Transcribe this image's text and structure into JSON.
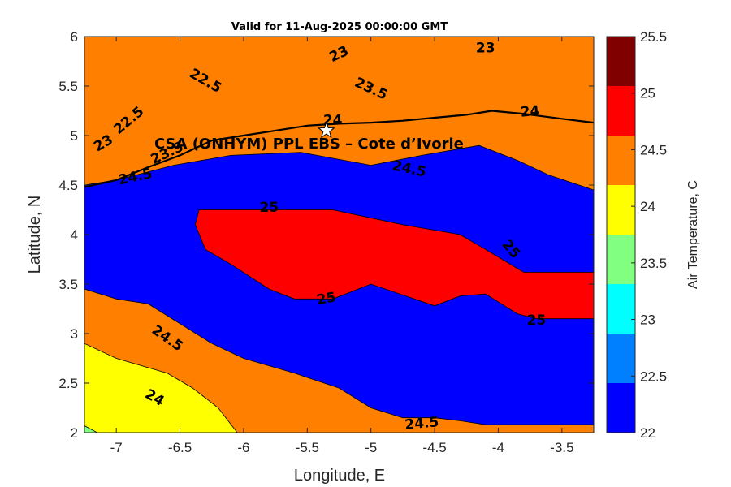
{
  "chart_data": {
    "type": "heatmap",
    "subtype": "filled-contour map",
    "title": "Valid for 11-Aug-2025 00:00:00 GMT",
    "xlabel": "Longitude, E",
    "ylabel": "Latitude, N",
    "xlim": [
      -7.25,
      -3.25
    ],
    "ylim": [
      2,
      6
    ],
    "xticks": [
      -7,
      -6.5,
      -6,
      -5.5,
      -5,
      -4.5,
      -4,
      -3.5
    ],
    "yticks": [
      2,
      2.5,
      3,
      3.5,
      4,
      4.5,
      5,
      5.5,
      6
    ],
    "xtick_labels": [
      "-7",
      "-6.5",
      "-6",
      "-5.5",
      "-5",
      "-4.5",
      "-4",
      "-3.5"
    ],
    "ytick_labels": [
      "2",
      "2.5",
      "3",
      "3.5",
      "4",
      "4.5",
      "5",
      "5.5",
      "6"
    ],
    "colorbar": {
      "label": "Air Temperature, C",
      "ticks": [
        22,
        22.5,
        23,
        23.5,
        24,
        24.5,
        25,
        25.5
      ],
      "tick_labels": [
        "22",
        "22.5",
        "23",
        "23.5",
        "24",
        "24.5",
        "25",
        "25.5"
      ],
      "levels": [
        22,
        22.5,
        23,
        23.5,
        24,
        24.5,
        25,
        25.5
      ],
      "colors": [
        "#0000ff",
        "#0080ff",
        "#00ffff",
        "#80ff80",
        "#ffff00",
        "#ff8000",
        "#ff0000",
        "#800000"
      ]
    },
    "contour_levels": [
      22.5,
      23,
      23.5,
      24,
      24.5,
      25
    ],
    "contours": [
      {
        "level": 22.5,
        "polygon": [
          [
            -7.25,
            6
          ],
          [
            -6.9,
            6
          ],
          [
            -6.75,
            5.85
          ],
          [
            -6.6,
            5.65
          ],
          [
            -6.5,
            5.3
          ],
          [
            -6.75,
            5.05
          ],
          [
            -7,
            4.9
          ],
          [
            -7.25,
            4.85
          ]
        ]
      },
      {
        "level": 22.5,
        "polygon": [
          [
            -6.2,
            6
          ],
          [
            -5.3,
            6
          ],
          [
            -5.5,
            5.72
          ],
          [
            -5.75,
            5.55
          ],
          [
            -5.9,
            5.52
          ],
          [
            -6.05,
            5.6
          ],
          [
            -6.15,
            5.8
          ]
        ]
      },
      {
        "level": 23,
        "polygon": [
          [
            -7.25,
            6
          ],
          [
            -6.4,
            6
          ],
          [
            -6.35,
            5.65
          ],
          [
            -5.85,
            5.42
          ],
          [
            -5.3,
            5.7
          ],
          [
            -5.15,
            5.75
          ],
          [
            -4.5,
            5.9
          ],
          [
            -4.3,
            6
          ],
          [
            -3.25,
            6
          ],
          [
            -3.25,
            5.5
          ],
          [
            -3.6,
            5.55
          ],
          [
            -4,
            5.6
          ],
          [
            -4.5,
            5.4
          ],
          [
            -4.75,
            5.25
          ],
          [
            -5.15,
            5.3
          ],
          [
            -5.25,
            5.42
          ],
          [
            -5.5,
            5.38
          ],
          [
            -5.75,
            5.2
          ],
          [
            -6,
            5.08
          ],
          [
            -6.25,
            5.05
          ],
          [
            -6.5,
            4.95
          ],
          [
            -6.75,
            4.82
          ],
          [
            -7.05,
            4.7
          ],
          [
            -7.25,
            4.62
          ]
        ]
      },
      {
        "level": 23.5,
        "polygon": [
          [
            -7.25,
            6
          ],
          [
            -3.25,
            6
          ],
          [
            -3.25,
            5.25
          ],
          [
            -3.7,
            5.25
          ],
          [
            -3.9,
            5.35
          ],
          [
            -4.05,
            5.48
          ],
          [
            -4.2,
            5.35
          ],
          [
            -4.45,
            5.3
          ],
          [
            -4.7,
            5.05
          ],
          [
            -5,
            5.1
          ],
          [
            -5.2,
            5.22
          ],
          [
            -5.35,
            5.08
          ],
          [
            -5.55,
            5.05
          ],
          [
            -5.8,
            5
          ],
          [
            -6.1,
            4.88
          ],
          [
            -6.5,
            4.85
          ],
          [
            -6.9,
            4.7
          ],
          [
            -7.25,
            4.55
          ]
        ]
      },
      {
        "level": 24,
        "polygon": [
          [
            -7.25,
            6
          ],
          [
            -3.25,
            6
          ],
          [
            -3.25,
            5.25
          ],
          [
            -3.6,
            5.2
          ],
          [
            -4,
            5.25
          ],
          [
            -4.5,
            5.18
          ],
          [
            -5,
            5.15
          ],
          [
            -5.5,
            5.1
          ],
          [
            -5.75,
            5.1
          ],
          [
            -6.25,
            4.95
          ],
          [
            -6.55,
            4.82
          ],
          [
            -7,
            4.62
          ],
          [
            -7.25,
            4.52
          ]
        ]
      },
      {
        "level": 24.5,
        "polygon": [
          [
            -7.25,
            6
          ],
          [
            -3.25,
            6
          ],
          [
            -3.25,
            4.45
          ],
          [
            -3.6,
            4.6
          ],
          [
            -3.85,
            4.75
          ],
          [
            -4.15,
            4.9
          ],
          [
            -4.6,
            4.8
          ],
          [
            -5,
            4.7
          ],
          [
            -5.55,
            4.83
          ],
          [
            -6.1,
            4.8
          ],
          [
            -6.55,
            4.7
          ],
          [
            -7,
            4.55
          ],
          [
            -7.25,
            4.5
          ]
        ]
      },
      {
        "level": 25,
        "polygon": [
          [
            -6.35,
            4.25
          ],
          [
            -5.9,
            4.25
          ],
          [
            -5.3,
            4.25
          ],
          [
            -4.75,
            4.1
          ],
          [
            -4.3,
            4
          ],
          [
            -4.1,
            3.85
          ],
          [
            -3.8,
            3.62
          ],
          [
            -3.25,
            3.62
          ],
          [
            -3.25,
            3.15
          ],
          [
            -3.7,
            3.15
          ],
          [
            -3.85,
            3.2
          ],
          [
            -4.1,
            3.4
          ],
          [
            -4.3,
            3.38
          ],
          [
            -4.5,
            3.28
          ],
          [
            -5,
            3.5
          ],
          [
            -5.3,
            3.35
          ],
          [
            -5.6,
            3.35
          ],
          [
            -5.8,
            3.45
          ],
          [
            -6.1,
            3.7
          ],
          [
            -6.3,
            3.85
          ],
          [
            -6.38,
            4.1
          ]
        ]
      },
      {
        "level": 24.5,
        "polygon": [
          [
            -7.25,
            3.45
          ],
          [
            -7,
            3.35
          ],
          [
            -6.75,
            3.3
          ],
          [
            -6.5,
            3.1
          ],
          [
            -6.25,
            2.9
          ],
          [
            -6,
            2.75
          ],
          [
            -5.6,
            2.6
          ],
          [
            -5.25,
            2.45
          ],
          [
            -5,
            2.25
          ],
          [
            -4.75,
            2.15
          ],
          [
            -4.5,
            2.15
          ],
          [
            -4.3,
            2.12
          ],
          [
            -4.1,
            2.08
          ],
          [
            -3.25,
            2.08
          ],
          [
            -3.25,
            2
          ],
          [
            -7.25,
            2
          ]
        ]
      },
      {
        "level": 24,
        "polygon": [
          [
            -7.25,
            2.9
          ],
          [
            -7,
            2.75
          ],
          [
            -6.6,
            2.6
          ],
          [
            -6.4,
            2.45
          ],
          [
            -6.2,
            2.25
          ],
          [
            -6.05,
            2
          ],
          [
            -7.25,
            2
          ]
        ]
      },
      {
        "level": 23.5,
        "polygon": [
          [
            -7.25,
            2.07
          ],
          [
            -7.15,
            2
          ],
          [
            -7.25,
            2
          ]
        ]
      }
    ],
    "contour_labels": [
      {
        "text": "22.5",
        "lon": -6.3,
        "lat": 5.55,
        "angle": 30
      },
      {
        "text": "22.5",
        "lon": -6.9,
        "lat": 5.15,
        "angle": -40
      },
      {
        "text": "23",
        "lon": -5.25,
        "lat": 5.82,
        "angle": -25
      },
      {
        "text": "23",
        "lon": -4.1,
        "lat": 5.88,
        "angle": 0
      },
      {
        "text": "23",
        "lon": -7.1,
        "lat": 4.92,
        "angle": -30
      },
      {
        "text": "23.5",
        "lon": -5,
        "lat": 5.47,
        "angle": 25
      },
      {
        "text": "23.5",
        "lon": -6.6,
        "lat": 4.82,
        "angle": -25
      },
      {
        "text": "24",
        "lon": -3.75,
        "lat": 5.24,
        "angle": -5
      },
      {
        "text": "24",
        "lon": -5.3,
        "lat": 5.15,
        "angle": 0
      },
      {
        "text": "24",
        "lon": -6.7,
        "lat": 2.35,
        "angle": 30
      },
      {
        "text": "24.5",
        "lon": -6.85,
        "lat": 4.58,
        "angle": -12
      },
      {
        "text": "24.5",
        "lon": -4.7,
        "lat": 4.66,
        "angle": 12
      },
      {
        "text": "24.5",
        "lon": -6.6,
        "lat": 2.95,
        "angle": 35
      },
      {
        "text": "24.5",
        "lon": -4.6,
        "lat": 2.09,
        "angle": -5
      },
      {
        "text": "25",
        "lon": -5.8,
        "lat": 4.27,
        "angle": 0
      },
      {
        "text": "25",
        "lon": -3.9,
        "lat": 3.85,
        "angle": 50
      },
      {
        "text": "25",
        "lon": -5.35,
        "lat": 3.35,
        "angle": -10
      },
      {
        "text": "25",
        "lon": -3.7,
        "lat": 3.13,
        "angle": 0
      }
    ],
    "coastline": [
      [
        -7.25,
        4.48
      ],
      [
        -7,
        4.55
      ],
      [
        -6.75,
        4.68
      ],
      [
        -6.5,
        4.8
      ],
      [
        -6.25,
        4.95
      ],
      [
        -6,
        5.0
      ],
      [
        -5.75,
        5.05
      ],
      [
        -5.5,
        5.1
      ],
      [
        -5.25,
        5.12
      ],
      [
        -5,
        5.13
      ],
      [
        -4.75,
        5.15
      ],
      [
        -4.5,
        5.18
      ],
      [
        -4.25,
        5.21
      ],
      [
        -4.05,
        5.25
      ],
      [
        -3.8,
        5.22
      ],
      [
        -3.5,
        5.17
      ],
      [
        -3.25,
        5.13
      ]
    ],
    "site": {
      "name": "CSA (ONHYM) PPL EBS  – Cote d’Ivorie",
      "lon": -5.35,
      "lat": 5.05,
      "marker": "star"
    }
  }
}
